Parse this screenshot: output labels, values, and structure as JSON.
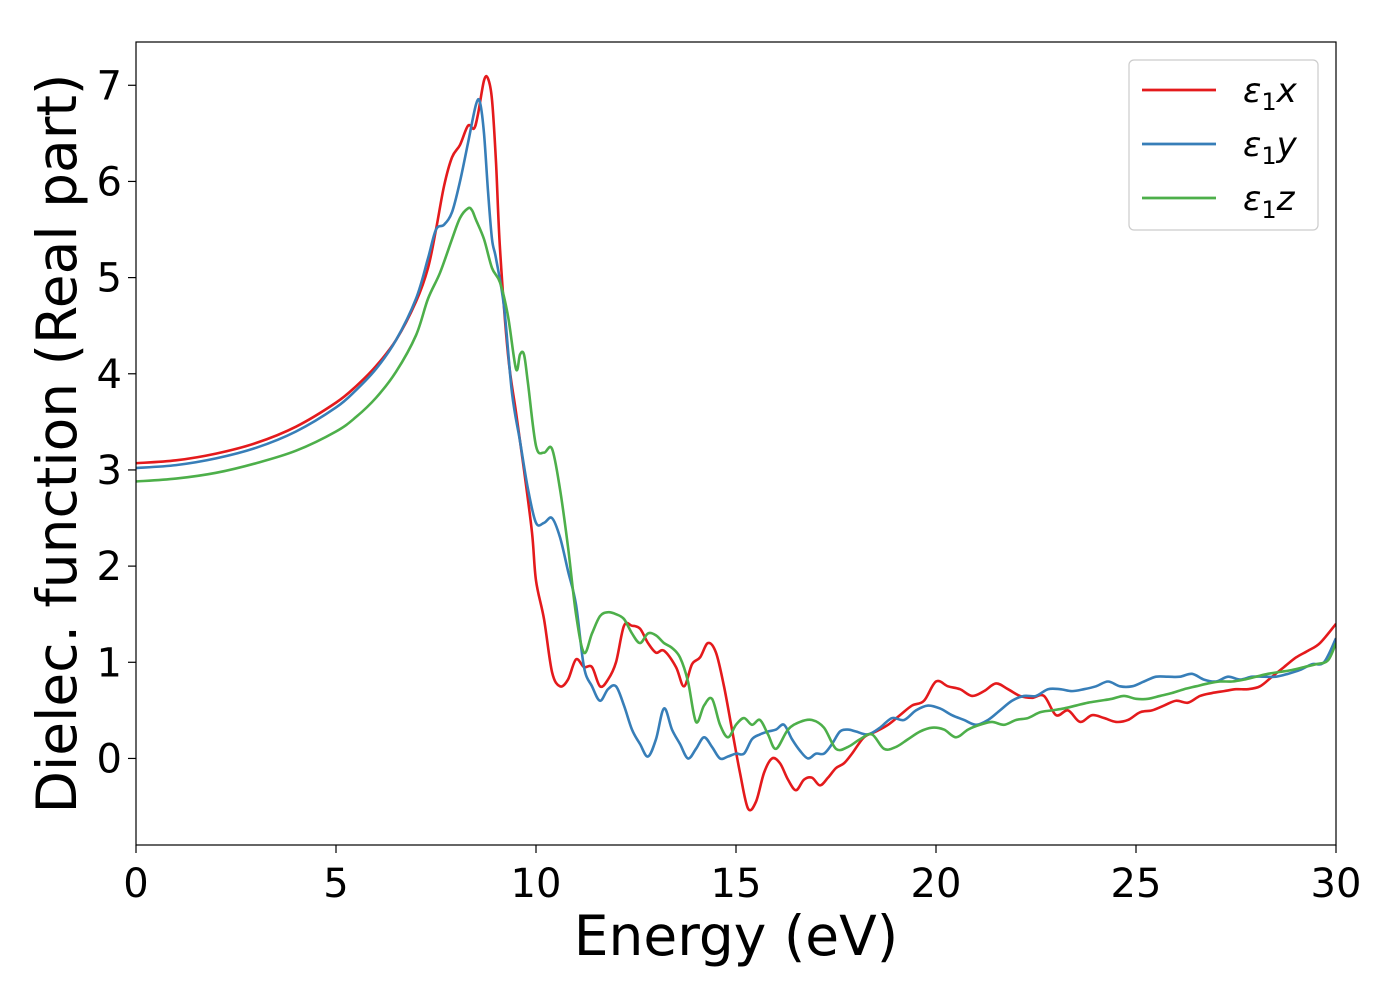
{
  "chart_data": {
    "type": "line",
    "xlabel": "Energy (eV)",
    "ylabel": "Dielec. function (Real part)",
    "xlim": [
      0,
      30
    ],
    "ylim": [
      -0.9,
      7.45
    ],
    "xticks": [
      0,
      5,
      10,
      15,
      20,
      25,
      30
    ],
    "yticks": [
      0,
      1,
      2,
      3,
      4,
      5,
      6,
      7
    ],
    "grid": false,
    "legend_position": "top-right",
    "series": [
      {
        "name": "ε₁x",
        "legend_base": "ε",
        "legend_sub": "1",
        "legend_var": "x",
        "color": "#e41a1c",
        "x": [
          0,
          1,
          2,
          3,
          4,
          5,
          5.5,
          6,
          6.5,
          7,
          7.3,
          7.5,
          7.7,
          7.9,
          8.1,
          8.3,
          8.45,
          8.55,
          8.7,
          8.8,
          8.9,
          9.0,
          9.1,
          9.3,
          9.5,
          9.7,
          9.9,
          10.0,
          10.2,
          10.4,
          10.6,
          10.8,
          11.0,
          11.2,
          11.4,
          11.6,
          11.8,
          12.0,
          12.2,
          12.4,
          12.6,
          12.8,
          13.0,
          13.2,
          13.5,
          13.7,
          13.9,
          14.1,
          14.3,
          14.5,
          14.7,
          14.9,
          15.1,
          15.3,
          15.5,
          15.7,
          15.9,
          16.1,
          16.3,
          16.5,
          16.7,
          16.9,
          17.1,
          17.3,
          17.5,
          17.7,
          17.9,
          18.2,
          18.5,
          18.8,
          19.1,
          19.4,
          19.7,
          20.0,
          20.3,
          20.6,
          20.9,
          21.2,
          21.5,
          21.8,
          22.1,
          22.4,
          22.7,
          23.0,
          23.3,
          23.6,
          23.9,
          24.2,
          24.5,
          24.8,
          25.1,
          25.4,
          25.7,
          26.0,
          26.3,
          26.6,
          26.9,
          27.2,
          27.5,
          27.8,
          28.1,
          28.4,
          28.7,
          29.0,
          29.3,
          29.6,
          30.0
        ],
        "y": [
          3.07,
          3.1,
          3.17,
          3.28,
          3.45,
          3.7,
          3.87,
          4.08,
          4.35,
          4.75,
          5.1,
          5.5,
          5.95,
          6.25,
          6.38,
          6.58,
          6.55,
          6.7,
          7.05,
          7.07,
          6.85,
          6.2,
          5.3,
          4.2,
          3.6,
          3.0,
          2.35,
          1.85,
          1.45,
          0.9,
          0.75,
          0.82,
          1.03,
          0.95,
          0.95,
          0.75,
          0.82,
          1.0,
          1.38,
          1.38,
          1.35,
          1.2,
          1.1,
          1.12,
          0.95,
          0.75,
          0.98,
          1.05,
          1.2,
          1.1,
          0.75,
          0.3,
          -0.15,
          -0.52,
          -0.45,
          -0.15,
          0.0,
          -0.05,
          -0.22,
          -0.33,
          -0.22,
          -0.2,
          -0.28,
          -0.2,
          -0.1,
          -0.05,
          0.05,
          0.22,
          0.28,
          0.35,
          0.45,
          0.55,
          0.6,
          0.8,
          0.75,
          0.72,
          0.65,
          0.7,
          0.78,
          0.72,
          0.65,
          0.63,
          0.65,
          0.45,
          0.5,
          0.38,
          0.45,
          0.42,
          0.38,
          0.4,
          0.48,
          0.5,
          0.55,
          0.6,
          0.58,
          0.65,
          0.68,
          0.7,
          0.72,
          0.72,
          0.75,
          0.85,
          0.95,
          1.05,
          1.12,
          1.2,
          1.4
        ]
      },
      {
        "name": "ε₁y",
        "legend_base": "ε",
        "legend_sub": "1",
        "legend_var": "y",
        "color": "#377eb8",
        "x": [
          0,
          1,
          2,
          3,
          4,
          5,
          5.5,
          6,
          6.5,
          7,
          7.3,
          7.5,
          7.7,
          7.9,
          8.1,
          8.3,
          8.5,
          8.6,
          8.7,
          8.8,
          8.9,
          9.0,
          9.2,
          9.4,
          9.6,
          9.8,
          10.0,
          10.2,
          10.4,
          10.6,
          10.8,
          11.0,
          11.2,
          11.4,
          11.6,
          11.8,
          12.0,
          12.2,
          12.4,
          12.6,
          12.8,
          13.0,
          13.2,
          13.4,
          13.6,
          13.8,
          14.0,
          14.2,
          14.4,
          14.6,
          14.8,
          15.0,
          15.2,
          15.4,
          15.6,
          15.8,
          16.0,
          16.2,
          16.4,
          16.6,
          16.8,
          17.0,
          17.2,
          17.4,
          17.6,
          17.8,
          18.0,
          18.3,
          18.6,
          18.9,
          19.2,
          19.5,
          19.8,
          20.1,
          20.4,
          20.7,
          21.0,
          21.3,
          21.6,
          21.9,
          22.2,
          22.5,
          22.8,
          23.1,
          23.4,
          23.7,
          24.0,
          24.3,
          24.6,
          24.9,
          25.2,
          25.5,
          25.8,
          26.1,
          26.4,
          26.7,
          27.0,
          27.3,
          27.6,
          27.9,
          28.2,
          28.5,
          28.8,
          29.1,
          29.4,
          29.7,
          30.0
        ],
        "y": [
          3.02,
          3.05,
          3.12,
          3.23,
          3.4,
          3.65,
          3.83,
          4.05,
          4.35,
          4.78,
          5.2,
          5.5,
          5.55,
          5.68,
          6.0,
          6.4,
          6.8,
          6.82,
          6.5,
          5.9,
          5.4,
          5.2,
          4.7,
          3.8,
          3.3,
          2.8,
          2.45,
          2.45,
          2.5,
          2.3,
          1.95,
          1.6,
          0.95,
          0.75,
          0.6,
          0.72,
          0.75,
          0.55,
          0.3,
          0.15,
          0.02,
          0.2,
          0.52,
          0.3,
          0.15,
          0.0,
          0.1,
          0.22,
          0.12,
          0.0,
          0.02,
          0.05,
          0.05,
          0.2,
          0.25,
          0.28,
          0.3,
          0.35,
          0.2,
          0.08,
          0.0,
          0.05,
          0.05,
          0.15,
          0.28,
          0.3,
          0.28,
          0.25,
          0.32,
          0.42,
          0.4,
          0.5,
          0.55,
          0.52,
          0.45,
          0.4,
          0.35,
          0.4,
          0.5,
          0.6,
          0.65,
          0.65,
          0.72,
          0.72,
          0.7,
          0.72,
          0.75,
          0.8,
          0.75,
          0.75,
          0.8,
          0.85,
          0.85,
          0.85,
          0.88,
          0.82,
          0.8,
          0.85,
          0.82,
          0.85,
          0.85,
          0.85,
          0.88,
          0.92,
          0.98,
          1.0,
          1.25
        ]
      },
      {
        "name": "ε₁z",
        "legend_base": "ε",
        "legend_sub": "1",
        "legend_var": "z",
        "color": "#4daf4a",
        "x": [
          0,
          1,
          2,
          3,
          4,
          5,
          5.5,
          6,
          6.5,
          7,
          7.3,
          7.6,
          7.9,
          8.1,
          8.3,
          8.4,
          8.5,
          8.7,
          8.9,
          9.1,
          9.3,
          9.5,
          9.6,
          9.7,
          9.8,
          10.0,
          10.2,
          10.4,
          10.6,
          10.8,
          11.0,
          11.2,
          11.4,
          11.6,
          11.8,
          12.0,
          12.2,
          12.4,
          12.6,
          12.8,
          13.0,
          13.2,
          13.4,
          13.6,
          13.8,
          14.0,
          14.2,
          14.4,
          14.6,
          14.8,
          15.0,
          15.2,
          15.4,
          15.6,
          15.8,
          16.0,
          16.3,
          16.6,
          16.9,
          17.2,
          17.5,
          17.8,
          18.1,
          18.4,
          18.7,
          19.0,
          19.3,
          19.6,
          19.9,
          20.2,
          20.5,
          20.8,
          21.1,
          21.4,
          21.7,
          22.0,
          22.3,
          22.6,
          22.9,
          23.2,
          23.5,
          23.8,
          24.1,
          24.4,
          24.7,
          25.0,
          25.3,
          25.6,
          25.9,
          26.2,
          26.5,
          26.8,
          27.1,
          27.4,
          27.7,
          28.0,
          28.3,
          28.6,
          28.9,
          29.2,
          29.5,
          29.8,
          30.0
        ],
        "y": [
          2.88,
          2.91,
          2.97,
          3.07,
          3.2,
          3.4,
          3.55,
          3.75,
          4.02,
          4.4,
          4.78,
          5.05,
          5.4,
          5.62,
          5.72,
          5.7,
          5.6,
          5.4,
          5.1,
          4.95,
          4.6,
          4.05,
          4.2,
          4.2,
          3.9,
          3.25,
          3.18,
          3.22,
          2.8,
          2.2,
          1.5,
          1.1,
          1.3,
          1.48,
          1.52,
          1.5,
          1.45,
          1.3,
          1.2,
          1.3,
          1.28,
          1.2,
          1.15,
          1.05,
          0.8,
          0.38,
          0.55,
          0.62,
          0.35,
          0.22,
          0.35,
          0.42,
          0.35,
          0.4,
          0.25,
          0.1,
          0.3,
          0.38,
          0.4,
          0.32,
          0.1,
          0.12,
          0.2,
          0.25,
          0.1,
          0.12,
          0.2,
          0.28,
          0.32,
          0.3,
          0.22,
          0.3,
          0.35,
          0.38,
          0.35,
          0.4,
          0.42,
          0.48,
          0.5,
          0.52,
          0.55,
          0.58,
          0.6,
          0.62,
          0.65,
          0.62,
          0.62,
          0.65,
          0.68,
          0.72,
          0.75,
          0.78,
          0.8,
          0.8,
          0.82,
          0.85,
          0.88,
          0.9,
          0.92,
          0.95,
          0.98,
          1.02,
          1.2
        ]
      }
    ]
  }
}
